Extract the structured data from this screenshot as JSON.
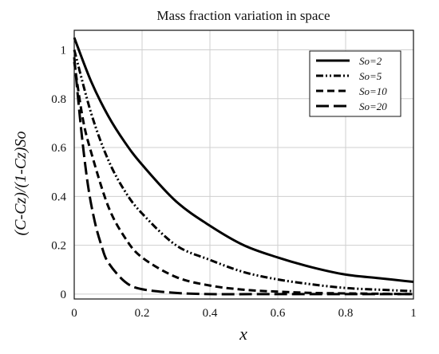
{
  "chart_data": {
    "type": "line",
    "title": "Mass fraction variation in space",
    "xlabel": "x",
    "ylabel": "(C-Cz)/(1-Cz)So",
    "xlim": [
      0,
      1
    ],
    "ylim": [
      -0.02,
      1.08
    ],
    "xticks": [
      "0",
      "0.2",
      "0.4",
      "0.6",
      "0.8",
      "1"
    ],
    "yticks": [
      "0",
      "0.2",
      "0.4",
      "0.6",
      "0.8",
      "1"
    ],
    "grid": true,
    "legend_position": "top-right",
    "series": [
      {
        "name": "So=2",
        "style": "solid",
        "x": [
          0,
          0.05,
          0.1,
          0.15,
          0.2,
          0.3,
          0.4,
          0.5,
          0.6,
          0.7,
          0.8,
          0.9,
          1.0
        ],
        "values": [
          1.05,
          0.87,
          0.73,
          0.62,
          0.53,
          0.38,
          0.28,
          0.2,
          0.15,
          0.11,
          0.08,
          0.065,
          0.05
        ]
      },
      {
        "name": "So=5",
        "style": "dash-dot-dot",
        "x": [
          0,
          0.05,
          0.1,
          0.15,
          0.2,
          0.3,
          0.4,
          0.5,
          0.6,
          0.7,
          0.8,
          0.9,
          1.0
        ],
        "values": [
          1.0,
          0.74,
          0.55,
          0.42,
          0.33,
          0.2,
          0.14,
          0.09,
          0.06,
          0.04,
          0.025,
          0.018,
          0.012
        ]
      },
      {
        "name": "So=10",
        "style": "dashed",
        "x": [
          0,
          0.025,
          0.05,
          0.1,
          0.15,
          0.2,
          0.3,
          0.4,
          0.5,
          0.6,
          0.7,
          0.8,
          1.0
        ],
        "values": [
          0.95,
          0.72,
          0.58,
          0.36,
          0.23,
          0.15,
          0.07,
          0.035,
          0.018,
          0.01,
          0.005,
          0.003,
          0.0
        ]
      },
      {
        "name": "So=20",
        "style": "long-dash",
        "x": [
          0,
          0.02,
          0.04,
          0.06,
          0.08,
          0.1,
          0.15,
          0.2,
          0.3,
          0.4,
          0.6,
          1.0
        ],
        "values": [
          0.97,
          0.68,
          0.45,
          0.3,
          0.2,
          0.13,
          0.05,
          0.02,
          0.005,
          0.0,
          0.0,
          0.0
        ]
      }
    ]
  }
}
